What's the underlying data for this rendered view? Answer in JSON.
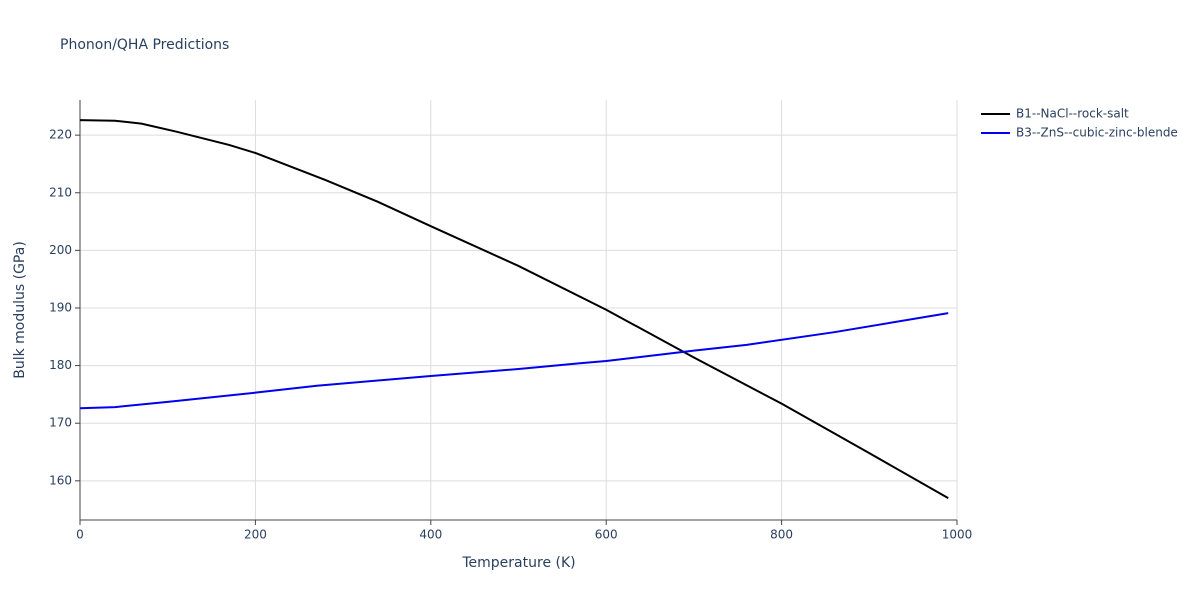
{
  "chart_data": {
    "type": "line",
    "title": "Phonon/QHA Predictions",
    "x_label": "Temperature (K)",
    "y_label": "Bulk modulus (GPa)",
    "xlim": [
      0,
      1000
    ],
    "xticks": [
      0,
      200,
      400,
      600,
      800,
      1000
    ],
    "ylim": [
      153.2,
      226.1
    ],
    "yticks": [
      160,
      170,
      180,
      190,
      200,
      210,
      220
    ],
    "grid": true,
    "legend": "right",
    "series": [
      {
        "name": "B1--NaCl--rock-salt",
        "color": "#000000",
        "x": [
          0,
          40,
          70,
          110,
          170,
          200,
          280,
          340,
          400,
          500,
          600,
          700,
          800,
          900,
          990
        ],
        "values": [
          222.6,
          222.5,
          222.0,
          220.6,
          218.3,
          216.9,
          212.2,
          208.4,
          204.2,
          197.3,
          189.7,
          181.4,
          173.4,
          164.8,
          157.0
        ]
      },
      {
        "name": "B3--ZnS--cubic-zinc-blende",
        "color": "#0000ee",
        "x": [
          0,
          40,
          100,
          200,
          270,
          400,
          500,
          570,
          600,
          700,
          760,
          860,
          990
        ],
        "values": [
          172.6,
          172.8,
          173.7,
          175.3,
          176.5,
          178.2,
          179.4,
          180.4,
          180.8,
          182.6,
          183.6,
          185.8,
          189.1
        ]
      }
    ]
  }
}
